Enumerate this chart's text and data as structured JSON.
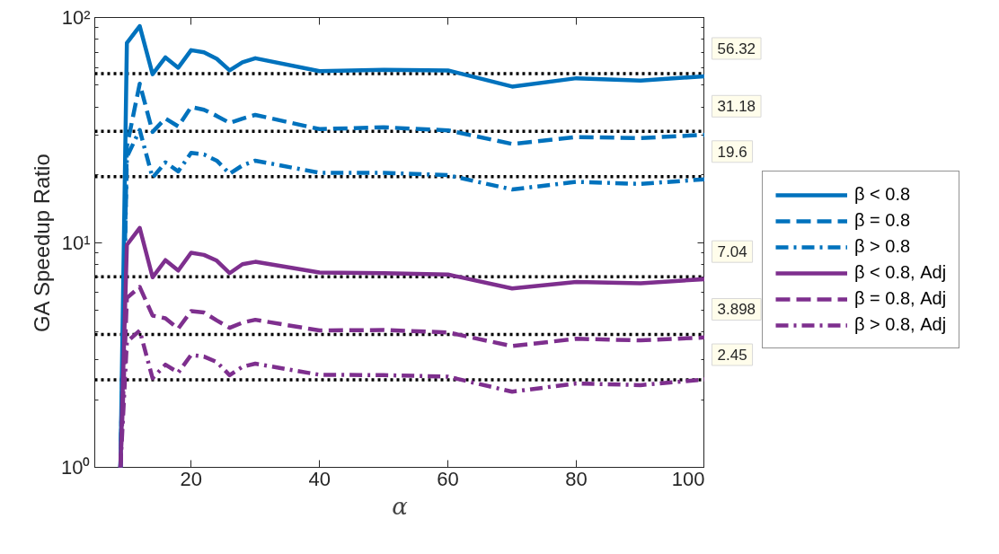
{
  "chart_data": {
    "type": "line",
    "xlabel": "α",
    "ylabel": "GA Speedup Ratio",
    "x": [
      9,
      10,
      12,
      14,
      16,
      18,
      20,
      22,
      24,
      26,
      28,
      30,
      40,
      50,
      60,
      70,
      80,
      90,
      100
    ],
    "series": [
      {
        "name": "β < 0.8",
        "color": "#0072bd",
        "line_style": "solid",
        "values": [
          1,
          77,
          91.6,
          56,
          66.5,
          59.8,
          71.6,
          70,
          65.5,
          58.2,
          63.2,
          65.9,
          57.7,
          58.6,
          58.2,
          49.3,
          53.7,
          52.4,
          54.8
        ]
      },
      {
        "name": "β = 0.8",
        "color": "#0072bd",
        "line_style": "dashed",
        "values": [
          1,
          26.7,
          50.8,
          31,
          35.6,
          32.8,
          40,
          38.9,
          36.5,
          34,
          35.5,
          36.9,
          31.9,
          32.5,
          31.5,
          27.4,
          29.4,
          29.1,
          30.1
        ]
      },
      {
        "name": "β > 0.8",
        "color": "#0072bd",
        "line_style": "dashdot",
        "values": [
          1,
          24,
          31.6,
          19.4,
          22.7,
          20.7,
          25,
          24.6,
          23.1,
          20.2,
          22,
          23.1,
          20.4,
          20.4,
          19.9,
          17.2,
          18.6,
          18.2,
          19.1
        ]
      },
      {
        "name": "β < 0.8, Adj",
        "color": "#7e2f8e",
        "line_style": "solid",
        "values": [
          1,
          9.75,
          11.6,
          7.0,
          8.34,
          7.5,
          9.0,
          8.8,
          8.3,
          7.3,
          8.0,
          8.2,
          7.35,
          7.3,
          7.2,
          6.24,
          6.67,
          6.58,
          6.87
        ]
      },
      {
        "name": "β = 0.8, Adj",
        "color": "#7e2f8e",
        "line_style": "dashed",
        "values": [
          1,
          5.66,
          6.34,
          4.73,
          4.6,
          4.14,
          4.95,
          4.88,
          4.5,
          4.17,
          4.4,
          4.53,
          4.06,
          4.08,
          3.98,
          3.46,
          3.73,
          3.67,
          3.78
        ]
      },
      {
        "name": "β > 0.8, Adj",
        "color": "#7e2f8e",
        "line_style": "dashdot",
        "values": [
          1,
          3.61,
          4.06,
          2.49,
          2.86,
          2.64,
          3.16,
          3.11,
          2.94,
          2.57,
          2.8,
          2.89,
          2.58,
          2.57,
          2.53,
          2.17,
          2.36,
          2.32,
          2.46
        ]
      }
    ],
    "ref_lines": [
      {
        "axis": "y",
        "value": 56.32,
        "label": "56.32",
        "color": "#000000",
        "line_style": "dotted"
      },
      {
        "axis": "y",
        "value": 31.18,
        "label": "31.18",
        "color": "#000000",
        "line_style": "dotted"
      },
      {
        "axis": "y",
        "value": 19.6,
        "label": "19.6",
        "color": "#000000",
        "line_style": "dotted"
      },
      {
        "axis": "y",
        "value": 7.04,
        "label": "7.04",
        "color": "#000000",
        "line_style": "dotted"
      },
      {
        "axis": "y",
        "value": 3.898,
        "label": "3.898",
        "color": "#000000",
        "line_style": "dotted"
      },
      {
        "axis": "y",
        "value": 2.45,
        "label": "2.45",
        "color": "#000000",
        "line_style": "dotted"
      }
    ],
    "xlim": [
      5,
      100
    ],
    "ylim": [
      1,
      100
    ],
    "log": "y",
    "xticks": [
      20,
      40,
      60,
      80,
      100
    ],
    "yticks": [
      {
        "value": 1,
        "label": "10⁰"
      },
      {
        "value": 10,
        "label": "10¹"
      },
      {
        "value": 100,
        "label": "10²"
      }
    ],
    "grid": false,
    "legend": "right",
    "marker": "none"
  }
}
